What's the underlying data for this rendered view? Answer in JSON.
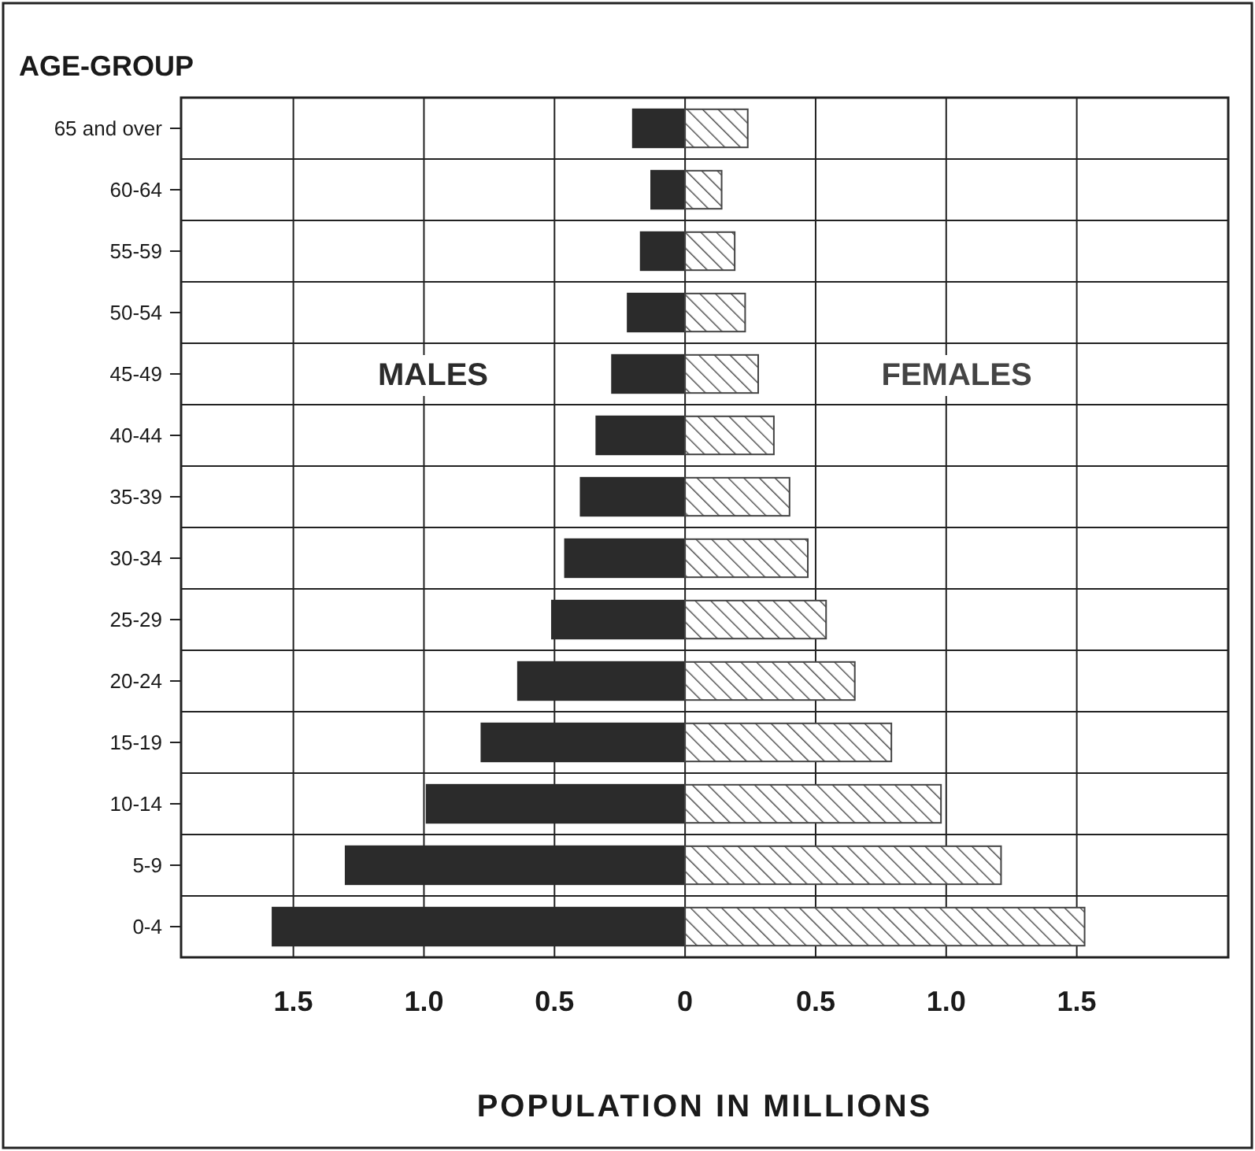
{
  "chart_data": {
    "type": "bar",
    "orientation": "horizontal",
    "stacked": true,
    "ylabel": "AGE-GROUP",
    "xlabel": "POPULATION IN MILLIONS",
    "categories": [
      "65 and over",
      "60-64",
      "55-59",
      "50-54",
      "45-49",
      "40-44",
      "35-39",
      "30-34",
      "25-29",
      "20-24",
      "15-19",
      "10-14",
      "5-9",
      "0-4"
    ],
    "series": [
      {
        "name": "MALES",
        "color": "#2b2b2b",
        "values": [
          -0.2,
          -0.13,
          -0.17,
          -0.22,
          -0.28,
          -0.34,
          -0.4,
          -0.46,
          -0.51,
          -0.64,
          -0.78,
          -0.99,
          -1.3,
          -1.58
        ]
      },
      {
        "name": "FEMALES",
        "color": "#444444",
        "values": [
          0.24,
          0.14,
          0.19,
          0.23,
          0.28,
          0.34,
          0.4,
          0.47,
          0.54,
          0.65,
          0.79,
          0.98,
          1.21,
          1.53
        ]
      }
    ],
    "xlim": [
      -1.93,
      2.08
    ],
    "xticks": [
      {
        "value": -1.5,
        "label": "1.5"
      },
      {
        "value": -1,
        "label": "1.0"
      },
      {
        "value": -0.5,
        "label": "0.5"
      },
      0,
      0.5,
      {
        "value": 1,
        "label": "1.0"
      },
      1.5
    ],
    "grid": true
  }
}
